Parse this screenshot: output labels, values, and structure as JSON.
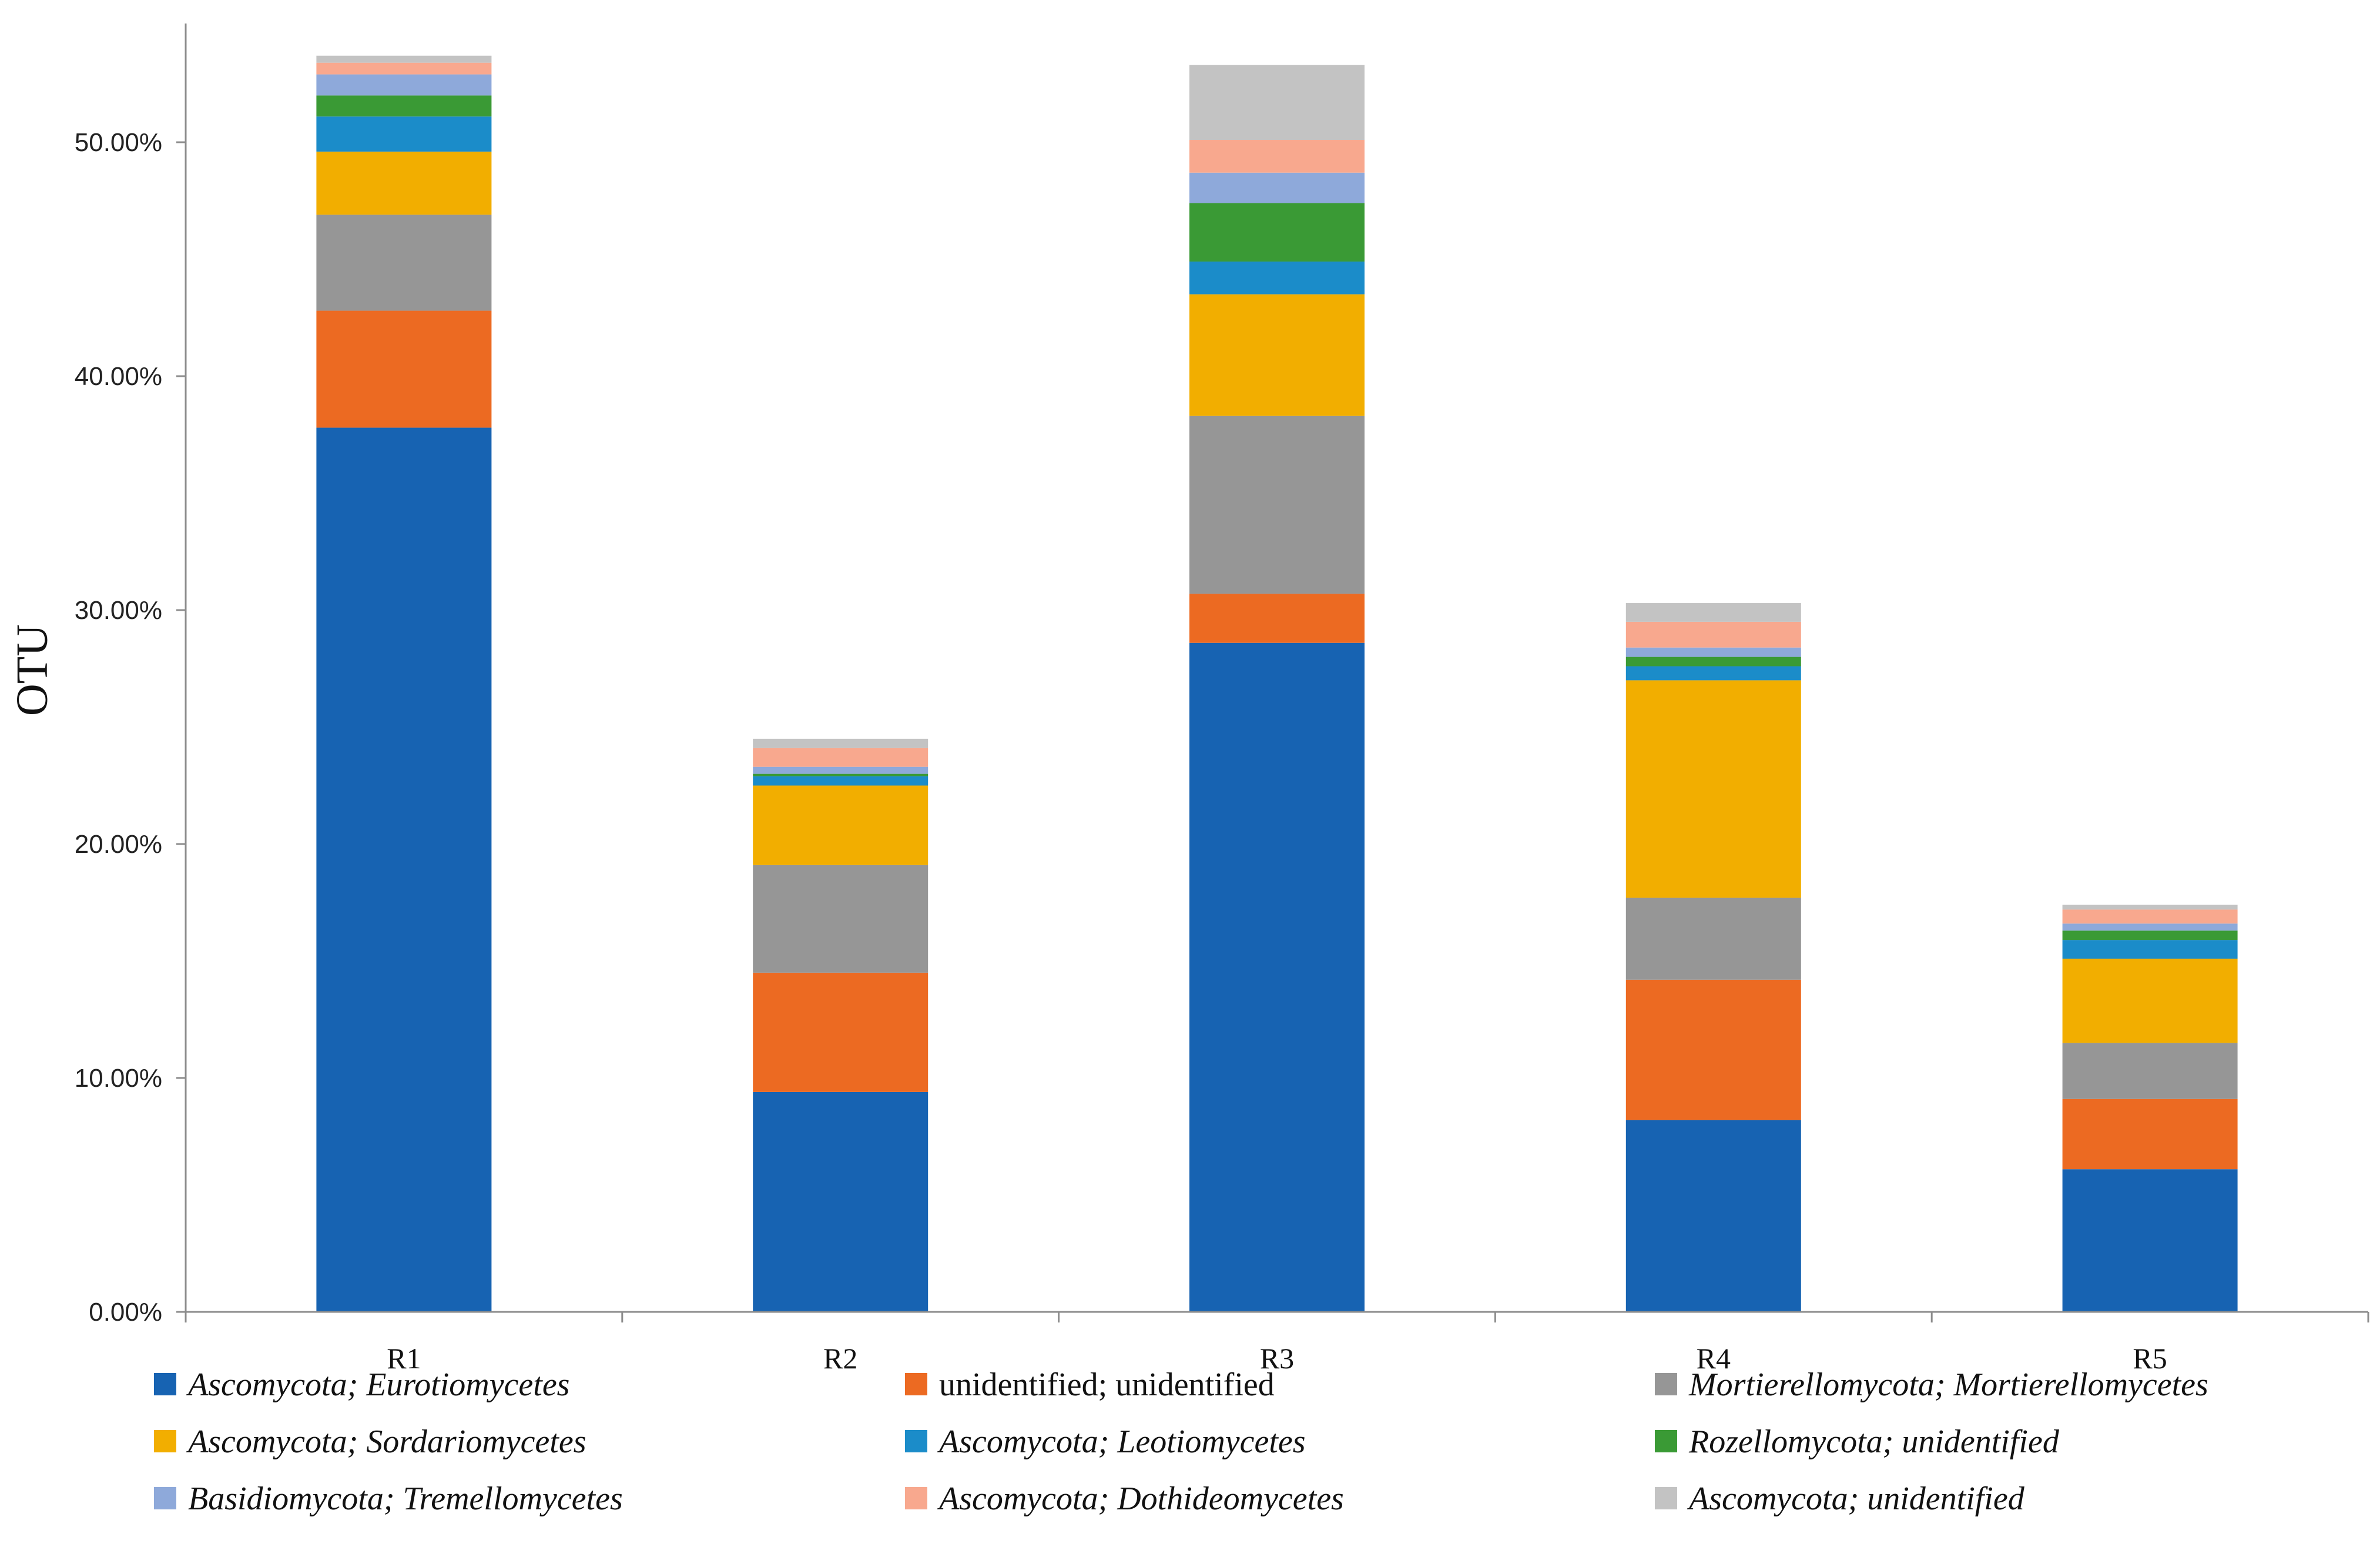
{
  "chart_data": {
    "type": "bar",
    "stacked": true,
    "title": "",
    "xlabel": "",
    "ylabel": "OTU",
    "ylim": [
      0,
      55
    ],
    "y_ticks": [
      0,
      10,
      20,
      30,
      40,
      50
    ],
    "y_tick_labels": [
      "0.00%",
      "10.00%",
      "20.00%",
      "30.00%",
      "40.00%",
      "50.00%"
    ],
    "categories": [
      "R1",
      "R2",
      "R3",
      "R4",
      "R5"
    ],
    "legend_position": "bottom",
    "series": [
      {
        "name": "Ascomycota; Eurotiomycetes",
        "color": "#1763B2",
        "italic": true,
        "values": [
          37.8,
          9.4,
          28.6,
          8.2,
          6.1
        ]
      },
      {
        "name": "unidentified; unidentified",
        "color": "#EC6A22",
        "italic": false,
        "values": [
          5.0,
          5.1,
          2.1,
          6.0,
          3.0
        ]
      },
      {
        "name": "Mortierellomycota; Mortierellomycetes",
        "color": "#969696",
        "italic": true,
        "values": [
          4.1,
          4.6,
          7.6,
          3.5,
          2.4
        ]
      },
      {
        "name": "Ascomycota; Sordariomycetes",
        "color": "#F2AE00",
        "italic": true,
        "values": [
          2.7,
          3.4,
          5.2,
          9.3,
          3.6
        ]
      },
      {
        "name": "Ascomycota; Leotiomycetes",
        "color": "#1B8CC9",
        "italic": true,
        "values": [
          1.5,
          0.4,
          1.4,
          0.6,
          0.8
        ]
      },
      {
        "name": "Rozellomycota; unidentified",
        "color": "#3A9A35",
        "italic": true,
        "values": [
          0.9,
          0.1,
          2.5,
          0.4,
          0.4
        ]
      },
      {
        "name": "Basidiomycota; Tremellomycetes",
        "color": "#8EA9DA",
        "italic": true,
        "values": [
          0.9,
          0.3,
          1.3,
          0.4,
          0.3
        ]
      },
      {
        "name": "Ascomycota; Dothideomycetes",
        "color": "#F8A88E",
        "italic": true,
        "values": [
          0.5,
          0.8,
          1.4,
          1.1,
          0.6
        ]
      },
      {
        "name": "Ascomycota; unidentified",
        "color": "#C3C3C3",
        "italic": true,
        "values": [
          0.3,
          0.4,
          3.2,
          0.8,
          0.2
        ]
      }
    ]
  }
}
